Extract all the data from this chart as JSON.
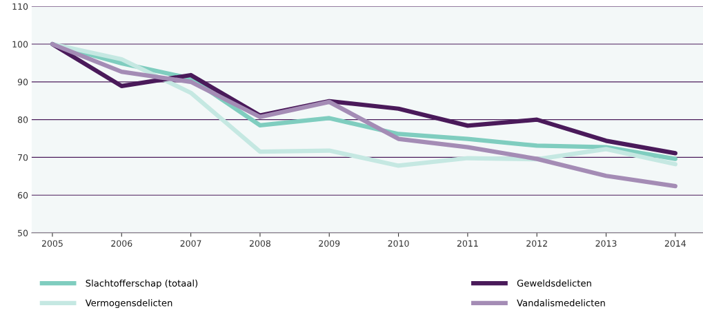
{
  "chart_data": {
    "type": "line",
    "categories": [
      "2005",
      "2006",
      "2007",
      "2008",
      "2009",
      "2010",
      "2011",
      "2012",
      "2013",
      "2014"
    ],
    "series": [
      {
        "name": "Slachtofferschap (totaal)",
        "color": "#7fcdbf",
        "values": [
          100,
          94.9,
          90.9,
          78.5,
          80.4,
          76.2,
          74.9,
          73.1,
          72.7,
          69.6
        ]
      },
      {
        "name": "Vermogensdelicten",
        "color": "#c5e8e2",
        "values": [
          100,
          96,
          87.1,
          71.5,
          71.8,
          67.8,
          69.8,
          69.5,
          72.2,
          68.2
        ]
      },
      {
        "name": "Geweldsdelicten",
        "color": "#4a1a5a",
        "values": [
          100,
          88.9,
          91.8,
          81.1,
          84.9,
          82.9,
          78.4,
          80,
          74.4,
          71.1
        ]
      },
      {
        "name": "Vandalismedelicten",
        "color": "#a48cb5",
        "values": [
          100,
          92.7,
          90,
          80.7,
          84.7,
          74.9,
          72.7,
          69.6,
          65.1,
          62.4
        ]
      }
    ],
    "ylim": [
      50,
      110
    ],
    "yticks": [
      50,
      60,
      70,
      80,
      90,
      100,
      110
    ],
    "grid": "y",
    "legend": "bottom",
    "marker": "none",
    "line_style": "solid"
  }
}
